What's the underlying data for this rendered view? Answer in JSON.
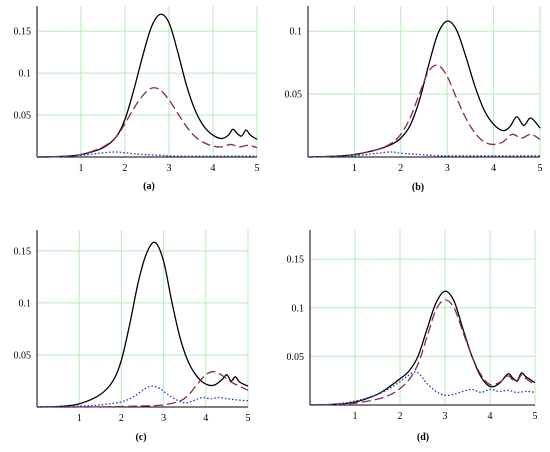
{
  "chart_data": [
    {
      "type": "line",
      "panel_label": "(a)",
      "xlim": [
        0,
        5
      ],
      "ylim": [
        0,
        0.18
      ],
      "xticks": [
        "1",
        "2",
        "3",
        "4",
        "5"
      ],
      "yticks": [
        {
          "v": 0.05,
          "label": "0.05"
        },
        {
          "v": 0.1,
          "label": "0.1"
        },
        {
          "v": 0.15,
          "label": "0.15"
        }
      ],
      "grid": true,
      "series": [
        {
          "style": "solid",
          "color": "#000000",
          "x": [
            0,
            0.5,
            1.0,
            1.5,
            1.8,
            2.0,
            2.2,
            2.4,
            2.6,
            2.8,
            3.0,
            3.2,
            3.4,
            3.6,
            3.8,
            4.0,
            4.2,
            4.35,
            4.45,
            4.55,
            4.65,
            4.75,
            4.85,
            5.0
          ],
          "y": [
            0,
            0.0005,
            0.003,
            0.011,
            0.024,
            0.045,
            0.08,
            0.12,
            0.155,
            0.17,
            0.16,
            0.125,
            0.085,
            0.055,
            0.036,
            0.026,
            0.022,
            0.026,
            0.033,
            0.028,
            0.025,
            0.032,
            0.026,
            0.021
          ]
        },
        {
          "style": "dashed",
          "color": "#8b2a4a",
          "x": [
            0,
            0.5,
            1.0,
            1.5,
            1.8,
            2.0,
            2.2,
            2.4,
            2.6,
            2.8,
            3.0,
            3.2,
            3.4,
            3.6,
            3.8,
            4.0,
            4.2,
            4.4,
            4.6,
            4.8,
            5.0
          ],
          "y": [
            0,
            0.0005,
            0.003,
            0.012,
            0.024,
            0.04,
            0.058,
            0.073,
            0.082,
            0.08,
            0.068,
            0.052,
            0.036,
            0.024,
            0.017,
            0.013,
            0.012,
            0.015,
            0.012,
            0.014,
            0.011
          ]
        },
        {
          "style": "dotted",
          "color": "#1f3fcc",
          "x": [
            0,
            0.5,
            1.0,
            1.5,
            1.8,
            2.0,
            2.4,
            2.8,
            3.2,
            4.0,
            5.0
          ],
          "y": [
            0,
            0.0005,
            0.002,
            0.005,
            0.006,
            0.005,
            0.003,
            0.002,
            0.001,
            0.001,
            0.001
          ]
        }
      ]
    },
    {
      "type": "line",
      "panel_label": "(b)",
      "xlim": [
        0,
        5
      ],
      "ylim": [
        0,
        0.12
      ],
      "xticks": [
        "1",
        "2",
        "3",
        "4",
        "5"
      ],
      "yticks": [
        {
          "v": 0.05,
          "label": "0.05"
        },
        {
          "v": 0.1,
          "label": "0.1"
        }
      ],
      "grid": true,
      "series": [
        {
          "style": "solid",
          "color": "#000000",
          "x": [
            0,
            0.5,
            1.0,
            1.5,
            1.8,
            2.0,
            2.2,
            2.4,
            2.6,
            2.8,
            3.0,
            3.2,
            3.4,
            3.6,
            3.8,
            4.0,
            4.2,
            4.35,
            4.5,
            4.65,
            4.8,
            5.0
          ],
          "y": [
            0,
            0.0005,
            0.002,
            0.006,
            0.01,
            0.015,
            0.025,
            0.045,
            0.073,
            0.098,
            0.108,
            0.101,
            0.08,
            0.056,
            0.037,
            0.026,
            0.021,
            0.024,
            0.032,
            0.025,
            0.031,
            0.023
          ]
        },
        {
          "style": "dashed",
          "color": "#8b2a4a",
          "x": [
            0,
            0.5,
            1.0,
            1.5,
            1.8,
            2.0,
            2.2,
            2.4,
            2.6,
            2.8,
            3.0,
            3.2,
            3.4,
            3.6,
            3.8,
            4.0,
            4.2,
            4.4,
            4.6,
            4.8,
            5.0
          ],
          "y": [
            0,
            0.0005,
            0.002,
            0.006,
            0.011,
            0.018,
            0.031,
            0.05,
            0.068,
            0.073,
            0.064,
            0.047,
            0.031,
            0.019,
            0.012,
            0.01,
            0.012,
            0.018,
            0.015,
            0.018,
            0.014
          ]
        },
        {
          "style": "dotted",
          "color": "#1f3fcc",
          "x": [
            0,
            0.5,
            1.0,
            1.5,
            1.8,
            2.0,
            2.4,
            2.8,
            3.2,
            4.0,
            5.0
          ],
          "y": [
            0,
            0.0005,
            0.001,
            0.003,
            0.004,
            0.003,
            0.002,
            0.001,
            0.001,
            0.001,
            0.001
          ]
        }
      ]
    },
    {
      "type": "line",
      "panel_label": "(c)",
      "xlim": [
        0,
        5
      ],
      "ylim": [
        0,
        0.17
      ],
      "xticks": [
        "1",
        "2",
        "3",
        "4",
        "5"
      ],
      "yticks": [
        {
          "v": 0.05,
          "label": "0.05"
        },
        {
          "v": 0.1,
          "label": "0.1"
        },
        {
          "v": 0.15,
          "label": "0.15"
        }
      ],
      "grid": true,
      "series": [
        {
          "style": "solid",
          "color": "#000000",
          "x": [
            0,
            0.5,
            1.0,
            1.5,
            1.8,
            2.0,
            2.2,
            2.4,
            2.6,
            2.8,
            3.0,
            3.2,
            3.4,
            3.6,
            3.8,
            4.0,
            4.2,
            4.4,
            4.5,
            4.6,
            4.7,
            4.8,
            5.0
          ],
          "y": [
            0,
            0.0005,
            0.003,
            0.012,
            0.025,
            0.045,
            0.08,
            0.12,
            0.148,
            0.158,
            0.14,
            0.1,
            0.065,
            0.042,
            0.029,
            0.022,
            0.021,
            0.027,
            0.031,
            0.025,
            0.029,
            0.024,
            0.02
          ]
        },
        {
          "style": "dashed",
          "color": "#8b2a4a",
          "x": [
            0,
            1.0,
            2.0,
            2.5,
            3.0,
            3.4,
            3.6,
            3.8,
            4.0,
            4.2,
            4.4,
            4.6,
            4.8,
            5.0
          ],
          "y": [
            0,
            0,
            0.0005,
            0.001,
            0.002,
            0.006,
            0.012,
            0.022,
            0.031,
            0.034,
            0.03,
            0.024,
            0.02,
            0.016
          ]
        },
        {
          "style": "dotted",
          "color": "#1f3fcc",
          "x": [
            0,
            1.0,
            1.5,
            2.0,
            2.3,
            2.5,
            2.7,
            2.9,
            3.1,
            3.3,
            3.5,
            3.7,
            3.9,
            4.1,
            4.3,
            4.5,
            4.7,
            5.0
          ],
          "y": [
            0,
            0.001,
            0.002,
            0.005,
            0.01,
            0.016,
            0.02,
            0.018,
            0.012,
            0.007,
            0.004,
            0.006,
            0.009,
            0.008,
            0.009,
            0.008,
            0.007,
            0.006
          ]
        }
      ]
    },
    {
      "type": "line",
      "panel_label": "(d)",
      "xlim": [
        0,
        5
      ],
      "ylim": [
        0,
        0.18
      ],
      "xticks": [
        "1",
        "2",
        "3",
        "4",
        "5"
      ],
      "yticks": [
        {
          "v": 0.05,
          "label": "0.05"
        },
        {
          "v": 0.1,
          "label": "0.1"
        },
        {
          "v": 0.15,
          "label": "0.15"
        }
      ],
      "grid": true,
      "series": [
        {
          "style": "solid",
          "color": "#000000",
          "x": [
            0,
            0.5,
            1.0,
            1.5,
            1.8,
            2.0,
            2.2,
            2.4,
            2.6,
            2.8,
            3.0,
            3.2,
            3.4,
            3.6,
            3.8,
            4.0,
            4.2,
            4.4,
            4.5,
            4.6,
            4.7,
            4.8,
            5.0
          ],
          "y": [
            0,
            0.0005,
            0.003,
            0.011,
            0.02,
            0.027,
            0.035,
            0.05,
            0.078,
            0.105,
            0.117,
            0.107,
            0.078,
            0.05,
            0.029,
            0.019,
            0.022,
            0.032,
            0.028,
            0.025,
            0.033,
            0.029,
            0.023
          ]
        },
        {
          "style": "dashed",
          "color": "#8b2a4a",
          "x": [
            0,
            0.5,
            1.0,
            1.5,
            1.8,
            2.0,
            2.2,
            2.4,
            2.6,
            2.8,
            3.0,
            3.2,
            3.4,
            3.6,
            3.8,
            4.0,
            4.2,
            4.4,
            4.5,
            4.6,
            4.7,
            4.8,
            5.0
          ],
          "y": [
            0,
            0.0005,
            0.002,
            0.006,
            0.011,
            0.017,
            0.026,
            0.042,
            0.07,
            0.098,
            0.108,
            0.1,
            0.075,
            0.05,
            0.031,
            0.021,
            0.023,
            0.03,
            0.026,
            0.024,
            0.031,
            0.027,
            0.021
          ]
        },
        {
          "style": "dotted",
          "color": "#1f3fcc",
          "x": [
            0,
            0.5,
            1.0,
            1.5,
            1.8,
            2.0,
            2.2,
            2.3,
            2.4,
            2.5,
            2.6,
            2.8,
            3.0,
            3.2,
            3.4,
            3.6,
            3.8,
            4.0,
            4.2,
            4.4,
            4.6,
            4.8,
            5.0
          ],
          "y": [
            0,
            0.001,
            0.004,
            0.011,
            0.018,
            0.024,
            0.031,
            0.034,
            0.033,
            0.028,
            0.022,
            0.014,
            0.01,
            0.011,
            0.014,
            0.016,
            0.013,
            0.016,
            0.014,
            0.015,
            0.013,
            0.014,
            0.013
          ]
        }
      ]
    }
  ]
}
